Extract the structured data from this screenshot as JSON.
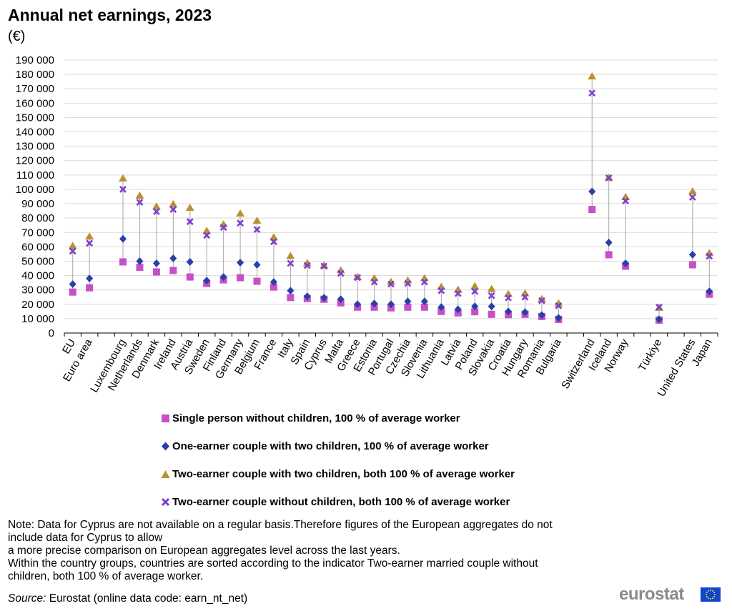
{
  "header": {
    "title": "Annual net earnings, 2023",
    "subtitle": "(€)"
  },
  "chart_data": {
    "type": "scatter",
    "title": "Annual net earnings, 2023",
    "ylabel": "(€)",
    "ylim": [
      0,
      190000
    ],
    "ytick_step": 10000,
    "ytick_labels": [
      "0",
      "10 000",
      "20 000",
      "30 000",
      "40 000",
      "50 000",
      "60 000",
      "70 000",
      "80 000",
      "90 000",
      "100 000",
      "110 000",
      "120 000",
      "130 000",
      "140 000",
      "150 000",
      "160 000",
      "170 000",
      "180 000",
      "190 000"
    ],
    "grid": true,
    "range_lines": true,
    "legend_position": "bottom",
    "categories": [
      "EU",
      "Euro area",
      "",
      "Luxembourg",
      "Netherlands",
      "Denmark",
      "Ireland",
      "Austria",
      "Sweden",
      "Finland",
      "Germany",
      "Belgium",
      "France",
      "Italy",
      "Spain",
      "Cyprus",
      "Malta",
      "Greece",
      "Estonia",
      "Portugal",
      "Czechia",
      "Slovenia",
      "Lithuania",
      "Latvia",
      "Poland",
      "Slovakia",
      "Croatia",
      "Hungary",
      "Romania",
      "Bulgaria",
      "",
      "Switzerland",
      "Iceland",
      "Norway",
      "",
      "Türkiye",
      "",
      "United States",
      "Japan"
    ],
    "series": [
      {
        "name": "Single person without children, 100 % of average worker",
        "marker": "square",
        "color": "#c74fc7",
        "values": [
          28500,
          31500,
          null,
          49500,
          45700,
          42500,
          43500,
          39000,
          34500,
          37000,
          38500,
          36000,
          32000,
          24700,
          24000,
          23500,
          21000,
          18000,
          18000,
          17500,
          18000,
          18000,
          15000,
          14000,
          14800,
          13000,
          12800,
          13000,
          11500,
          9500,
          null,
          86000,
          54500,
          46500,
          null,
          9000,
          null,
          47500,
          27000
        ]
      },
      {
        "name": "One-earner couple with two children, 100 % of average worker",
        "marker": "diamond",
        "color": "#2a3fa8",
        "values": [
          34000,
          38000,
          null,
          65500,
          50000,
          48500,
          52000,
          49500,
          36500,
          39000,
          49000,
          47500,
          35500,
          29500,
          25500,
          24500,
          23500,
          20000,
          20500,
          20000,
          22000,
          22000,
          18000,
          16500,
          18500,
          18500,
          15000,
          14500,
          12500,
          10500,
          null,
          98500,
          63000,
          48500,
          null,
          9500,
          null,
          54500,
          29000
        ]
      },
      {
        "name": "Two-earner couple with two children, both 100 % of average worker",
        "marker": "triangle",
        "color": "#b8922f",
        "values": [
          60500,
          67000,
          null,
          107500,
          95500,
          88000,
          89500,
          87000,
          71000,
          75500,
          83000,
          78000,
          66500,
          53500,
          48500,
          47000,
          43500,
          39000,
          38000,
          35500,
          36500,
          38000,
          32000,
          30000,
          32500,
          30500,
          27000,
          27500,
          23500,
          20500,
          null,
          178500,
          108000,
          94500,
          null,
          17500,
          null,
          98500,
          55500
        ]
      },
      {
        "name": "Two-earner couple without children, both 100 % of average worker",
        "marker": "cross",
        "color": "#7d3fd0",
        "values": [
          57000,
          62500,
          null,
          100000,
          91000,
          84500,
          86000,
          77500,
          68000,
          73500,
          76500,
          72000,
          63500,
          48500,
          47000,
          46500,
          41500,
          38500,
          35500,
          34000,
          34500,
          35500,
          29500,
          27500,
          29000,
          26000,
          24500,
          25000,
          22500,
          19000,
          null,
          167000,
          108000,
          92000,
          null,
          18000,
          null,
          94500,
          53500
        ]
      }
    ]
  },
  "legend": {
    "items": [
      {
        "label": "Single person without children, 100 % of average worker"
      },
      {
        "label": "One-earner couple with two children, 100 % of average worker"
      },
      {
        "label": "Two-earner couple with two children, both 100 % of average worker"
      },
      {
        "label": "Two-earner couple without children, both 100 % of average worker"
      }
    ]
  },
  "note": {
    "lines": [
      "Note: Data for Cyprus are not available on a regular basis.Therefore figures of the European aggregates do not",
      "include data for Cyprus to allow",
      "a more precise comparison on European aggregates level across the last years.",
      "Within the country groups, countries are sorted according to the indicator Two-earner married couple without",
      "children, both 100 % of average worker."
    ]
  },
  "source": {
    "label": "Source:",
    "text": " Eurostat (online data code: earn_nt_net)"
  },
  "logo": {
    "text": "eurostat"
  }
}
